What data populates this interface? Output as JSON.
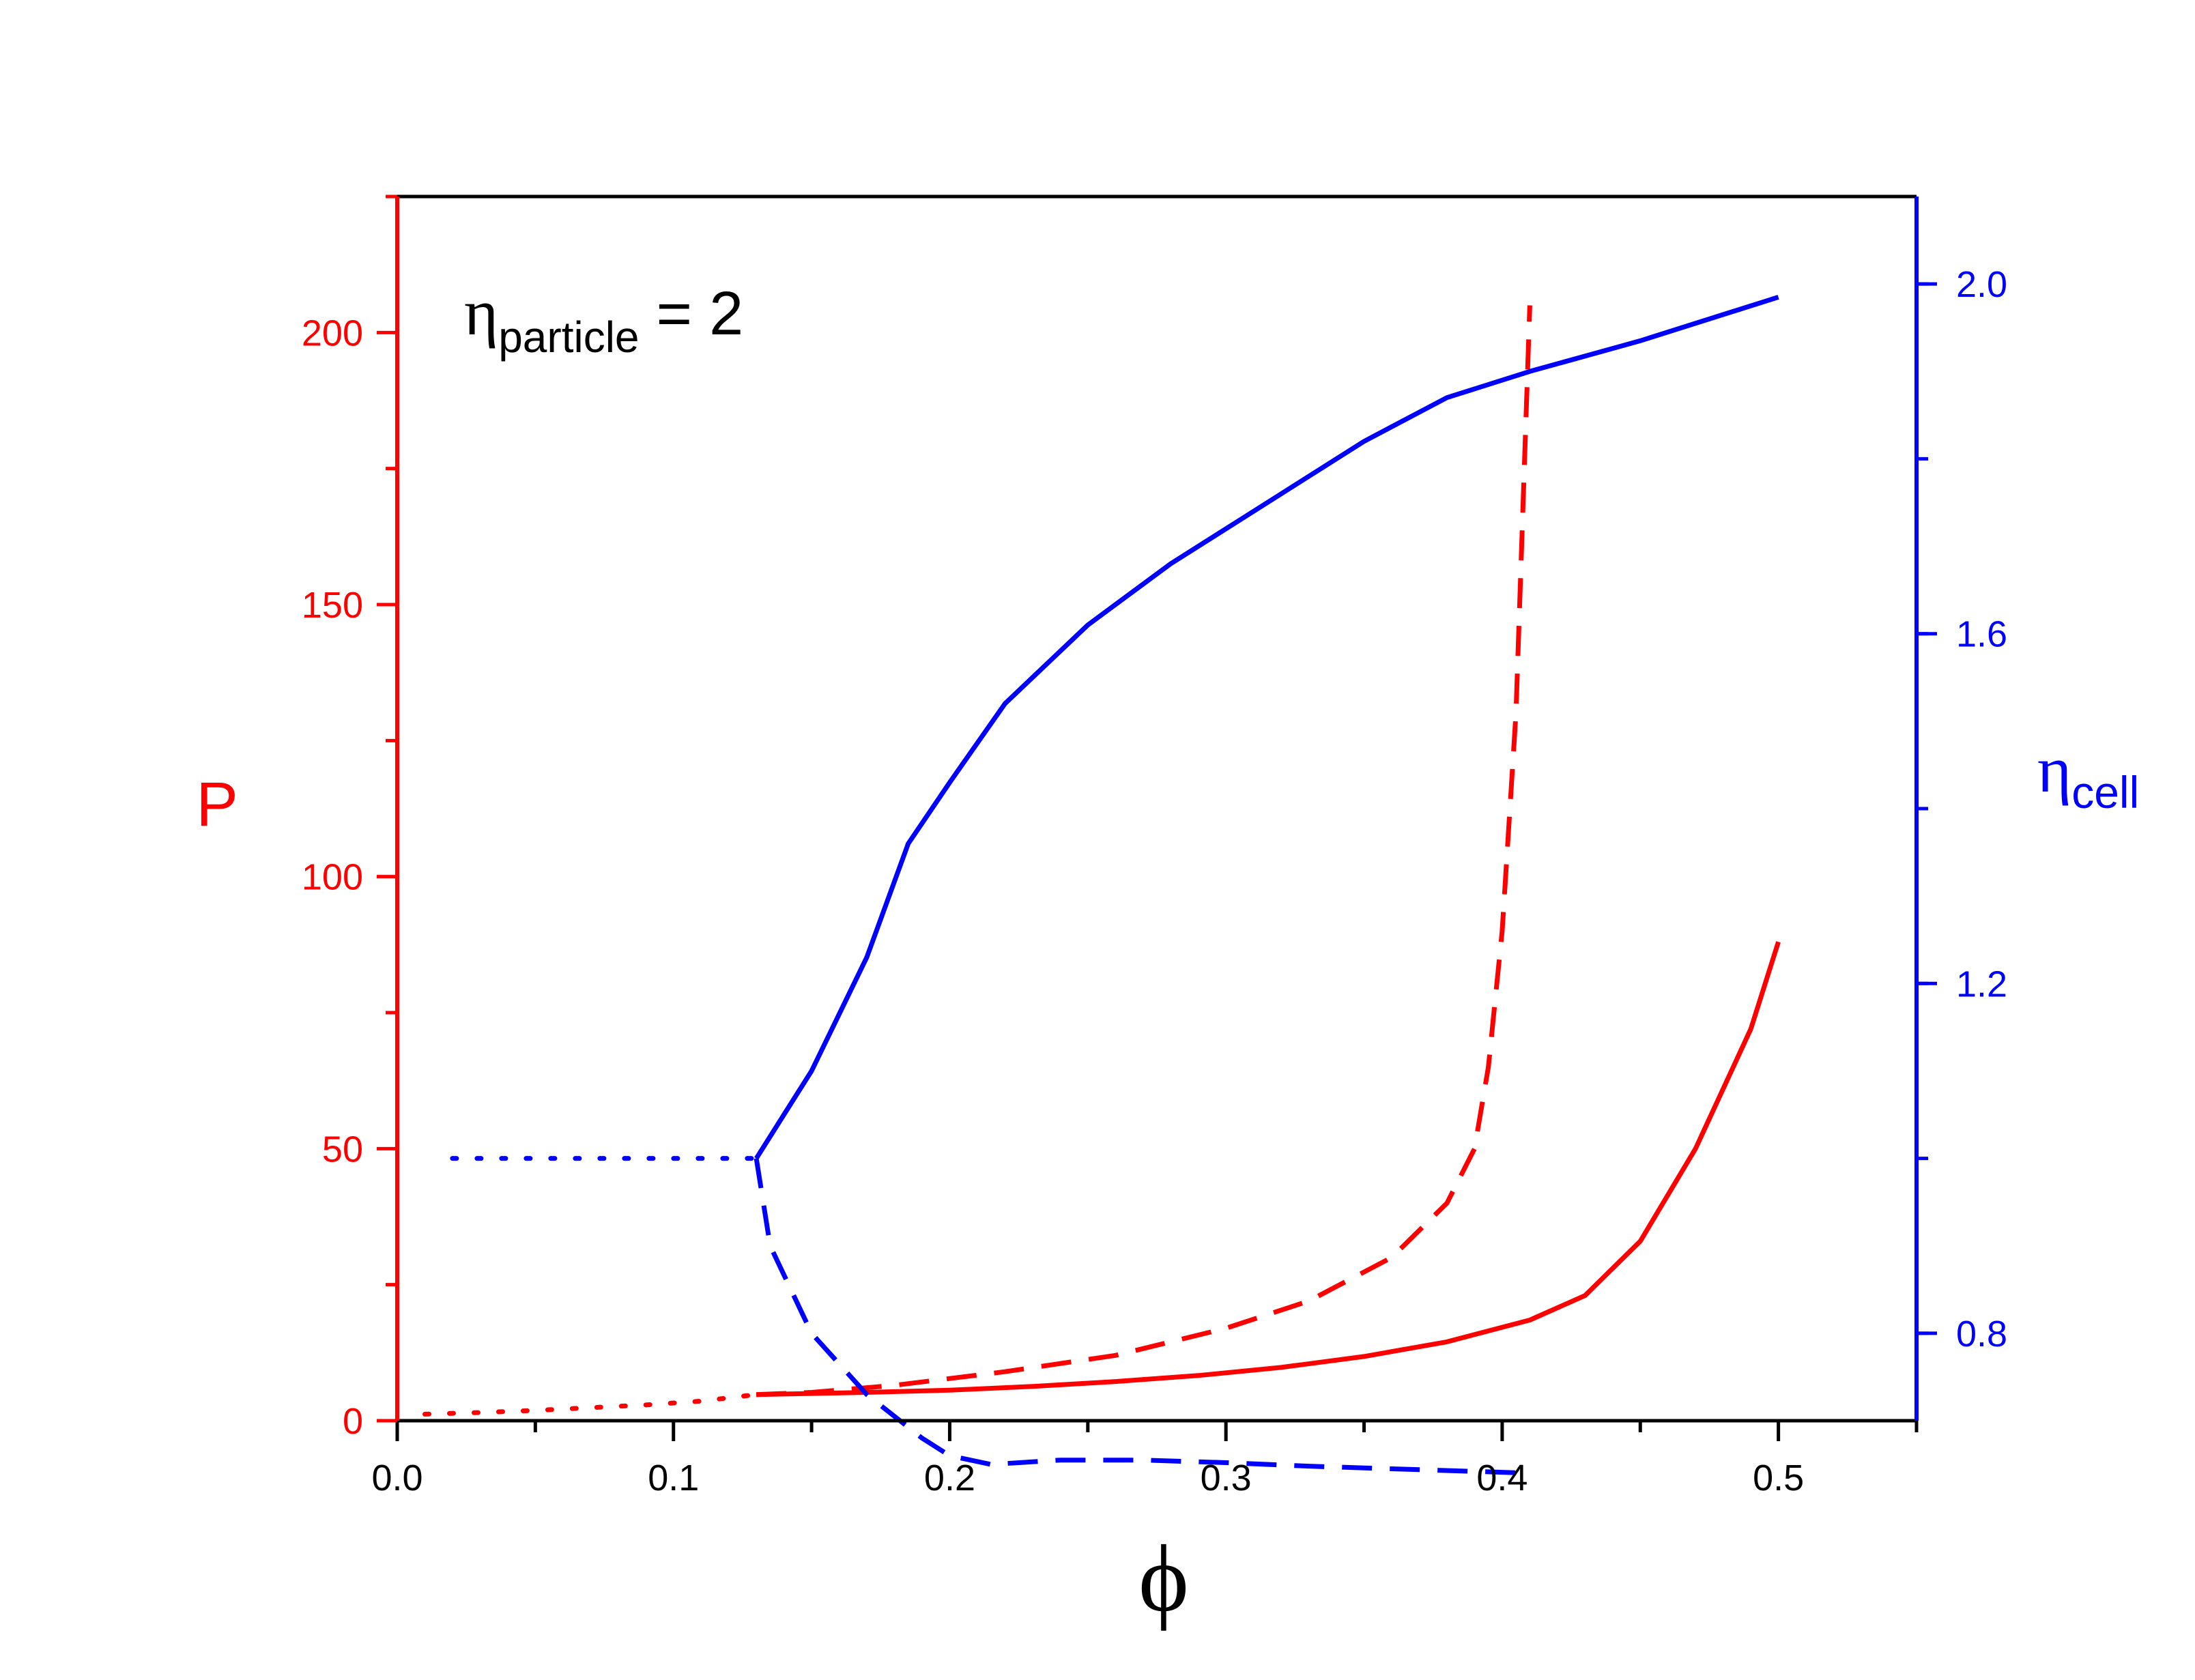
{
  "chart_data": {
    "type": "line",
    "annotation": {
      "symbol": "η",
      "subscript": "particle",
      "rest": " = 2"
    },
    "xlabel": "ϕ",
    "ylabel_left": "P",
    "ylabel_right": {
      "symbol": "η",
      "subscript": "cell"
    },
    "xlim": [
      0,
      0.55
    ],
    "ylim_left": [
      0,
      225
    ],
    "ylim_right": [
      0.7,
      2.1
    ],
    "x_ticks": [
      {
        "value": 0.0,
        "label": "0.0"
      },
      {
        "value": 0.1,
        "label": "0.1"
      },
      {
        "value": 0.2,
        "label": "0.2"
      },
      {
        "value": 0.3,
        "label": "0.3"
      },
      {
        "value": 0.4,
        "label": "0.4"
      },
      {
        "value": 0.5,
        "label": "0.5"
      }
    ],
    "x_minor_ticks": [
      0.05,
      0.15,
      0.25,
      0.35,
      0.45,
      0.55
    ],
    "y_left_ticks": [
      {
        "value": 0,
        "label": "0"
      },
      {
        "value": 50,
        "label": "50"
      },
      {
        "value": 100,
        "label": "100"
      },
      {
        "value": 150,
        "label": "150"
      },
      {
        "value": 200,
        "label": "200"
      }
    ],
    "y_left_minor_ticks": [
      25,
      75,
      125,
      175,
      225
    ],
    "y_right_ticks": [
      {
        "value": 0.8,
        "label": "0.8"
      },
      {
        "value": 1.2,
        "label": "1.2"
      },
      {
        "value": 1.6,
        "label": "1.6"
      },
      {
        "value": 2.0,
        "label": "2.0"
      }
    ],
    "y_right_minor_ticks": [
      0.8,
      1.0,
      1.2,
      1.4,
      1.6,
      1.8,
      2.0
    ],
    "colors": {
      "left_axis": "#ff0000",
      "right_axis": "#0000ff",
      "frame": "#000000"
    },
    "grid": false,
    "series": [
      {
        "axis": "left",
        "color": "#ff0000",
        "style": "dotted",
        "points": [
          [
            0.01,
            1.2
          ],
          [
            0.03,
            1.5
          ],
          [
            0.05,
            1.9
          ],
          [
            0.07,
            2.4
          ],
          [
            0.09,
            2.9
          ],
          [
            0.11,
            3.6
          ],
          [
            0.13,
            4.8
          ]
        ]
      },
      {
        "axis": "left",
        "color": "#ff0000",
        "style": "solid",
        "points": [
          [
            0.13,
            4.8
          ],
          [
            0.15,
            5.0
          ],
          [
            0.17,
            5.2
          ],
          [
            0.2,
            5.6
          ],
          [
            0.23,
            6.3
          ],
          [
            0.26,
            7.2
          ],
          [
            0.29,
            8.3
          ],
          [
            0.32,
            9.8
          ],
          [
            0.35,
            11.8
          ],
          [
            0.38,
            14.5
          ],
          [
            0.41,
            18.5
          ],
          [
            0.43,
            23.0
          ],
          [
            0.45,
            33.0
          ],
          [
            0.47,
            50.0
          ],
          [
            0.49,
            72.0
          ],
          [
            0.5,
            88.0
          ]
        ]
      },
      {
        "axis": "left",
        "color": "#ff0000",
        "style": "dashed",
        "points": [
          [
            0.13,
            4.8
          ],
          [
            0.15,
            5.2
          ],
          [
            0.18,
            6.5
          ],
          [
            0.22,
            9.0
          ],
          [
            0.26,
            12.0
          ],
          [
            0.3,
            17.0
          ],
          [
            0.33,
            22.0
          ],
          [
            0.36,
            30.0
          ],
          [
            0.38,
            40.0
          ],
          [
            0.39,
            50.0
          ],
          [
            0.395,
            65.0
          ],
          [
            0.4,
            90.0
          ],
          [
            0.405,
            130.0
          ],
          [
            0.41,
            205.0
          ]
        ]
      },
      {
        "axis": "right",
        "color": "#0000ff",
        "style": "dotted",
        "points": [
          [
            0.02,
            1.0
          ],
          [
            0.13,
            1.0
          ]
        ]
      },
      {
        "axis": "right",
        "color": "#0000ff",
        "style": "solid",
        "points": [
          [
            0.13,
            1.0
          ],
          [
            0.15,
            1.1
          ],
          [
            0.17,
            1.23
          ],
          [
            0.185,
            1.36
          ],
          [
            0.2,
            1.43
          ],
          [
            0.22,
            1.52
          ],
          [
            0.25,
            1.61
          ],
          [
            0.28,
            1.68
          ],
          [
            0.32,
            1.76
          ],
          [
            0.35,
            1.82
          ],
          [
            0.38,
            1.87
          ],
          [
            0.41,
            1.9
          ],
          [
            0.45,
            1.935
          ],
          [
            0.5,
            1.985
          ]
        ]
      },
      {
        "axis": "right",
        "color": "#0000ff",
        "style": "dashed",
        "points": [
          [
            0.13,
            1.0
          ],
          [
            0.135,
            0.9
          ],
          [
            0.15,
            0.8
          ],
          [
            0.17,
            0.73
          ],
          [
            0.19,
            0.68
          ],
          [
            0.2,
            0.66
          ],
          [
            0.215,
            0.65
          ],
          [
            0.24,
            0.655
          ],
          [
            0.27,
            0.655
          ],
          [
            0.3,
            0.652
          ],
          [
            0.33,
            0.648
          ],
          [
            0.36,
            0.645
          ],
          [
            0.39,
            0.642
          ],
          [
            0.41,
            0.64
          ]
        ]
      }
    ]
  }
}
